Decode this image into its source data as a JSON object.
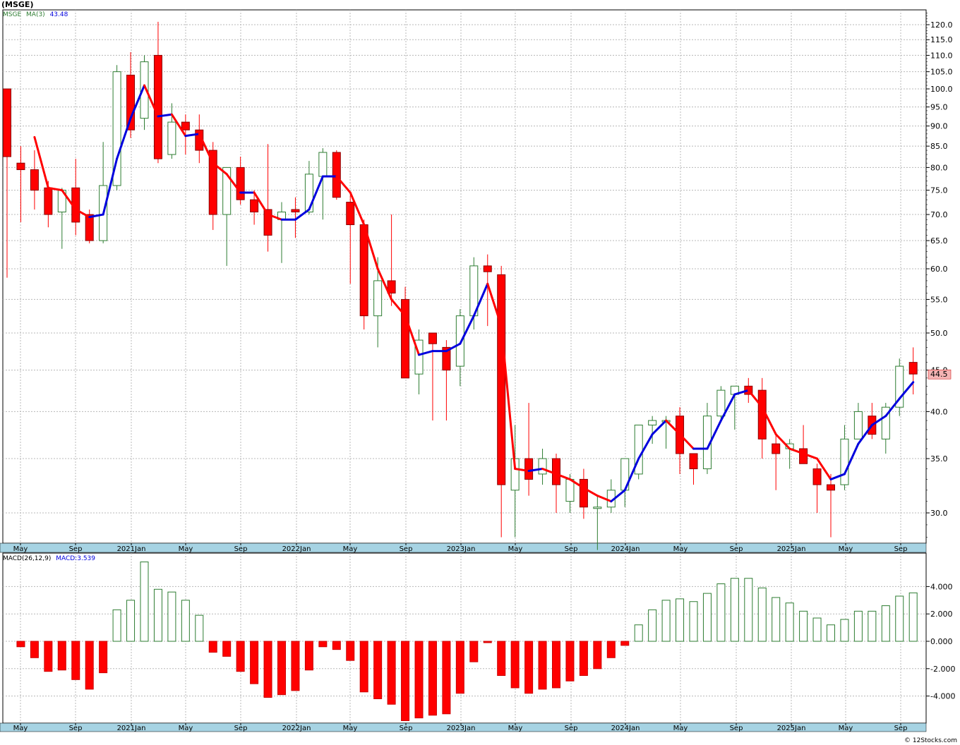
{
  "title": "(MSGE)",
  "price_legend": {
    "symbol": "MSGE",
    "ma_label": "MA(3)",
    "ma_value": "43.48"
  },
  "macd_legend": {
    "label": "MACD(26,12,9)",
    "value_label": "MACD:3.539"
  },
  "last_price_tag": "44.5",
  "footer": "© 12Stocks.com",
  "colors": {
    "up": "#2e7d32",
    "down": "#ff0000",
    "ma_up": "#0000dd",
    "ma_down": "#ff0000",
    "axis_bar": "#a6d3e3",
    "grid": "#b8b8b8"
  },
  "chart_data": [
    {
      "type": "candlestick",
      "title": "(MSGE)",
      "y_scale": "log",
      "ylim": [
        26.5,
        125
      ],
      "y_ticks": [
        "120.0",
        "115.0",
        "110.0",
        "105.0",
        "100.0",
        "95.0",
        "90.0",
        "85.0",
        "80.0",
        "75.0",
        "70.0",
        "65.0",
        "60.0",
        "55.0",
        "50.0",
        "45.0",
        "40.0",
        "35.0",
        "30.0"
      ],
      "x_labels": [
        "May",
        "Sep",
        "2021Jan",
        "May",
        "Sep",
        "2022Jan",
        "May",
        "Sep",
        "2023Jan",
        "May",
        "Sep",
        "2024Jan",
        "May",
        "Sep",
        "2025Jan",
        "May",
        "Sep"
      ],
      "grid": true,
      "candles": [
        {
          "o": 100,
          "h": 100,
          "l": 58.5,
          "c": 82.5
        },
        {
          "o": 81,
          "h": 85,
          "l": 68.5,
          "c": 79.5
        },
        {
          "o": 79.5,
          "h": 84,
          "l": 71,
          "c": 75
        },
        {
          "o": 75.5,
          "h": 77,
          "l": 67.5,
          "c": 70
        },
        {
          "o": 70.5,
          "h": 75.5,
          "l": 63.5,
          "c": 75
        },
        {
          "o": 75.5,
          "h": 82,
          "l": 66,
          "c": 68.5
        },
        {
          "o": 70,
          "h": 71,
          "l": 64.5,
          "c": 65
        },
        {
          "o": 65,
          "h": 86,
          "l": 64.5,
          "c": 76
        },
        {
          "o": 76,
          "h": 107,
          "l": 75,
          "c": 105
        },
        {
          "o": 104,
          "h": 111,
          "l": 87,
          "c": 89
        },
        {
          "o": 92,
          "h": 110,
          "l": 89,
          "c": 108
        },
        {
          "o": 110,
          "h": 121,
          "l": 81,
          "c": 82
        },
        {
          "o": 83,
          "h": 96,
          "l": 82,
          "c": 91
        },
        {
          "o": 91,
          "h": 93,
          "l": 83,
          "c": 89
        },
        {
          "o": 89,
          "h": 93,
          "l": 81,
          "c": 84
        },
        {
          "o": 84,
          "h": 86,
          "l": 67,
          "c": 70
        },
        {
          "o": 70,
          "h": 80,
          "l": 60.5,
          "c": 80
        },
        {
          "o": 80,
          "h": 82.5,
          "l": 72,
          "c": 73
        },
        {
          "o": 73,
          "h": 75,
          "l": 68,
          "c": 70.5
        },
        {
          "o": 71,
          "h": 85.5,
          "l": 63,
          "c": 66
        },
        {
          "o": 69,
          "h": 72.5,
          "l": 61,
          "c": 70.5
        },
        {
          "o": 71,
          "h": 73.5,
          "l": 65.5,
          "c": 70.5
        },
        {
          "o": 70.5,
          "h": 81.5,
          "l": 70,
          "c": 78.5
        },
        {
          "o": 78,
          "h": 84.5,
          "l": 69,
          "c": 83.5
        },
        {
          "o": 83.5,
          "h": 84,
          "l": 73,
          "c": 73.5
        },
        {
          "o": 72.5,
          "h": 74,
          "l": 57.5,
          "c": 68
        },
        {
          "o": 68,
          "h": 69,
          "l": 50.5,
          "c": 52.5
        },
        {
          "o": 52.5,
          "h": 62,
          "l": 48,
          "c": 58
        },
        {
          "o": 58,
          "h": 70,
          "l": 54,
          "c": 56
        },
        {
          "o": 55,
          "h": 57,
          "l": 44,
          "c": 44
        },
        {
          "o": 44.5,
          "h": 50.5,
          "l": 42,
          "c": 49
        },
        {
          "o": 50,
          "h": 50,
          "l": 39,
          "c": 48.5
        },
        {
          "o": 48,
          "h": 49,
          "l": 39,
          "c": 45
        },
        {
          "o": 45.5,
          "h": 53.5,
          "l": 43,
          "c": 52.5
        },
        {
          "o": 52.5,
          "h": 62,
          "l": 50.5,
          "c": 60.5
        },
        {
          "o": 60.5,
          "h": 62.5,
          "l": 51,
          "c": 59.5
        },
        {
          "o": 59,
          "h": 60.5,
          "l": 28,
          "c": 32.5
        },
        {
          "o": 32,
          "h": 38.5,
          "l": 28,
          "c": 35
        },
        {
          "o": 35,
          "h": 41,
          "l": 31.5,
          "c": 33
        },
        {
          "o": 33.5,
          "h": 36,
          "l": 32.5,
          "c": 35
        },
        {
          "o": 35,
          "h": 35.5,
          "l": 30,
          "c": 32.5
        },
        {
          "o": 31,
          "h": 33.5,
          "l": 30,
          "c": 33
        },
        {
          "o": 33,
          "h": 34,
          "l": 29.5,
          "c": 30.5
        },
        {
          "o": 30.5,
          "h": 31.5,
          "l": 27,
          "c": 30.5
        },
        {
          "o": 30.5,
          "h": 33,
          "l": 30,
          "c": 32
        },
        {
          "o": 32,
          "h": 35,
          "l": 30.5,
          "c": 35
        },
        {
          "o": 33.5,
          "h": 38.5,
          "l": 33,
          "c": 38.5
        },
        {
          "o": 38.5,
          "h": 39.5,
          "l": 36.5,
          "c": 39
        },
        {
          "o": 39,
          "h": 39.5,
          "l": 36,
          "c": 39
        },
        {
          "o": 39.5,
          "h": 40.5,
          "l": 33.5,
          "c": 35.5
        },
        {
          "o": 35.5,
          "h": 35.5,
          "l": 32.5,
          "c": 34
        },
        {
          "o": 34,
          "h": 41,
          "l": 33.5,
          "c": 39.5
        },
        {
          "o": 39.5,
          "h": 43,
          "l": 39,
          "c": 42.5
        },
        {
          "o": 42,
          "h": 43,
          "l": 38,
          "c": 43
        },
        {
          "o": 43,
          "h": 44,
          "l": 41,
          "c": 42
        },
        {
          "o": 42.5,
          "h": 44,
          "l": 35,
          "c": 37
        },
        {
          "o": 36.5,
          "h": 37.5,
          "l": 32,
          "c": 35.5
        },
        {
          "o": 36,
          "h": 37,
          "l": 34,
          "c": 36.5
        },
        {
          "o": 36,
          "h": 38.5,
          "l": 35,
          "c": 34.5
        },
        {
          "o": 34,
          "h": 34.5,
          "l": 30,
          "c": 32.5
        },
        {
          "o": 32.5,
          "h": 33.5,
          "l": 28,
          "c": 32
        },
        {
          "o": 32.5,
          "h": 38.5,
          "l": 32,
          "c": 37
        },
        {
          "o": 37,
          "h": 41,
          "l": 37,
          "c": 40
        },
        {
          "o": 39.5,
          "h": 41,
          "l": 37,
          "c": 37.5
        },
        {
          "o": 37,
          "h": 41,
          "l": 35.5,
          "c": 40.5
        },
        {
          "o": 40.5,
          "h": 46.5,
          "l": 39.5,
          "c": 45.5
        },
        {
          "o": 46,
          "h": 48,
          "l": 42,
          "c": 44.5
        }
      ],
      "ma3": [
        null,
        null,
        87.2,
        75.5,
        75,
        71,
        69.5,
        70,
        82,
        92,
        101,
        92.5,
        93,
        87.5,
        88,
        81,
        78.5,
        74.5,
        74.5,
        70,
        69,
        69,
        71,
        78,
        78,
        74.5,
        68,
        60,
        55,
        52.5,
        47,
        47.5,
        47.5,
        48.5,
        52.5,
        57.5,
        51,
        34,
        33.8,
        34,
        33.5,
        33,
        32.2,
        31.5,
        31,
        32,
        35,
        37.5,
        39,
        37.5,
        36,
        36,
        39,
        42,
        42.5,
        40.5,
        37.5,
        36,
        35.5,
        35,
        33,
        33.5,
        36.5,
        38.5,
        39.5,
        41.5,
        43.48
      ]
    },
    {
      "type": "bar",
      "title": "MACD(26,12,9)",
      "ylim": [
        -6,
        6
      ],
      "y_ticks": [
        "4.000",
        "2.000",
        "0.000",
        "-2.000",
        "-4.000"
      ],
      "x_labels": [
        "May",
        "Sep",
        "2021Jan",
        "May",
        "Sep",
        "2022Jan",
        "May",
        "Sep",
        "2023Jan",
        "May",
        "Sep",
        "2024Jan",
        "May",
        "Sep",
        "2025Jan",
        "May",
        "Sep"
      ],
      "values": [
        null,
        -0.4,
        -1.2,
        -2.2,
        -2.1,
        -2.8,
        -3.5,
        -2.3,
        2.3,
        3.0,
        5.8,
        3.8,
        3.6,
        3.0,
        1.9,
        -0.8,
        -1.1,
        -2.2,
        -3.1,
        -4.1,
        -3.9,
        -3.6,
        -2.1,
        -0.4,
        -0.6,
        -1.4,
        -3.7,
        -4.2,
        -4.6,
        -5.8,
        -5.6,
        -5.4,
        -5.3,
        -3.8,
        -1.5,
        -0.1,
        -2.5,
        -3.4,
        -3.8,
        -3.5,
        -3.4,
        -2.9,
        -2.5,
        -2.0,
        -1.2,
        -0.3,
        1.2,
        2.3,
        3.0,
        3.1,
        2.9,
        3.5,
        4.2,
        4.6,
        4.6,
        3.9,
        3.2,
        2.8,
        2.2,
        1.7,
        1.2,
        1.6,
        2.2,
        2.2,
        2.6,
        3.3,
        3.539
      ]
    }
  ]
}
